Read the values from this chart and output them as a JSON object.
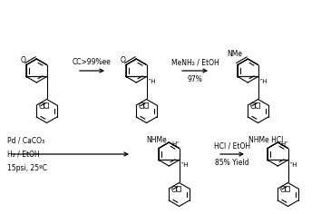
{
  "bg_color": "#ffffff",
  "figsize": [
    3.65,
    2.36
  ],
  "dpi": 100,
  "arrow1_text": "CC>99%ee",
  "arrow2_text1": "MeNH₂ / EtOH",
  "arrow2_text2": "97%",
  "arrow3_text1": "Pd / CaCO₃",
  "arrow3_text2": "H₂ / EtOH",
  "arrow3_text3": "15psi, 25ºC",
  "arrow4_text1": "HCl / EtOH",
  "arrow4_text2": "85% Yield",
  "lw": 0.8,
  "fs": 5.5,
  "fs_small": 5.0
}
